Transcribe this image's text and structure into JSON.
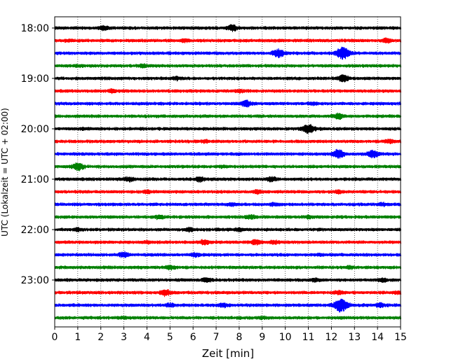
{
  "chart_data": {
    "type": "line",
    "title": "",
    "xlabel": "Zeit  [min]",
    "ylabel": "UTC (Lokalzeit = UTC + 02:00)",
    "xlim": [
      0,
      15
    ],
    "x_ticks": [
      0,
      1,
      2,
      3,
      4,
      5,
      6,
      7,
      8,
      9,
      10,
      11,
      12,
      13,
      14,
      15
    ],
    "x_tick_labels": [
      "0",
      "1",
      "2",
      "3",
      "4",
      "5",
      "6",
      "7",
      "8",
      "9",
      "10",
      "11",
      "12",
      "13",
      "14",
      "15"
    ],
    "x_grid": true,
    "trace_interval_minutes": 15,
    "y_tick_labels": [
      "18:00",
      "19:00",
      "20:00",
      "21:00",
      "22:00",
      "23:00"
    ],
    "trace_colors": [
      "#000000",
      "#ff0000",
      "#0000ff",
      "#008000"
    ],
    "series": [
      {
        "start": "18:00",
        "color": "#000000",
        "bursts": [
          [
            2.1,
            1.6
          ],
          [
            7.7,
            2.0
          ]
        ]
      },
      {
        "start": "18:15",
        "color": "#ff0000",
        "bursts": [
          [
            0.6,
            1.3
          ],
          [
            5.6,
            1.4
          ],
          [
            14.4,
            1.6
          ]
        ]
      },
      {
        "start": "18:30",
        "color": "#0000ff",
        "bursts": [
          [
            9.7,
            2.3
          ],
          [
            12.5,
            3.0
          ]
        ]
      },
      {
        "start": "18:45",
        "color": "#008000",
        "bursts": [
          [
            1.0,
            1.2
          ],
          [
            3.8,
            1.5
          ]
        ]
      },
      {
        "start": "19:00",
        "color": "#000000",
        "bursts": [
          [
            5.3,
            1.4
          ],
          [
            12.5,
            2.2
          ]
        ]
      },
      {
        "start": "19:15",
        "color": "#ff0000",
        "bursts": [
          [
            2.5,
            1.4
          ],
          [
            8.0,
            1.4
          ]
        ]
      },
      {
        "start": "19:30",
        "color": "#0000ff",
        "bursts": [
          [
            8.3,
            2.0
          ],
          [
            11.2,
            1.4
          ]
        ]
      },
      {
        "start": "19:45",
        "color": "#008000",
        "bursts": [
          [
            12.3,
            1.8
          ]
        ]
      },
      {
        "start": "20:00",
        "color": "#000000",
        "bursts": [
          [
            1.2,
            1.2
          ],
          [
            11.0,
            2.5
          ]
        ]
      },
      {
        "start": "20:15",
        "color": "#ff0000",
        "bursts": [
          [
            6.5,
            1.3
          ],
          [
            14.5,
            1.5
          ]
        ]
      },
      {
        "start": "20:30",
        "color": "#0000ff",
        "bursts": [
          [
            12.3,
            2.4
          ],
          [
            13.8,
            2.2
          ]
        ]
      },
      {
        "start": "20:45",
        "color": "#008000",
        "bursts": [
          [
            1.0,
            2.2
          ],
          [
            7.3,
            1.4
          ]
        ]
      },
      {
        "start": "21:00",
        "color": "#000000",
        "bursts": [
          [
            3.2,
            1.6
          ],
          [
            6.3,
            1.7
          ],
          [
            9.4,
            1.6
          ]
        ]
      },
      {
        "start": "21:15",
        "color": "#ff0000",
        "bursts": [
          [
            4.0,
            1.5
          ],
          [
            8.8,
            1.5
          ],
          [
            12.3,
            1.5
          ]
        ]
      },
      {
        "start": "21:30",
        "color": "#0000ff",
        "bursts": [
          [
            7.7,
            1.4
          ],
          [
            9.5,
            1.4
          ],
          [
            14.2,
            1.4
          ]
        ]
      },
      {
        "start": "21:45",
        "color": "#008000",
        "bursts": [
          [
            4.5,
            1.5
          ],
          [
            8.5,
            1.6
          ],
          [
            11.0,
            1.4
          ]
        ]
      },
      {
        "start": "22:00",
        "color": "#000000",
        "bursts": [
          [
            1.0,
            1.4
          ],
          [
            5.8,
            1.5
          ],
          [
            8.0,
            1.4
          ]
        ]
      },
      {
        "start": "22:15",
        "color": "#ff0000",
        "bursts": [
          [
            4.0,
            1.4
          ],
          [
            6.5,
            1.8
          ],
          [
            8.7,
            1.7
          ],
          [
            9.5,
            1.6
          ]
        ]
      },
      {
        "start": "22:30",
        "color": "#0000ff",
        "bursts": [
          [
            3.0,
            1.8
          ],
          [
            6.1,
            1.5
          ],
          [
            11.5,
            1.3
          ]
        ]
      },
      {
        "start": "22:45",
        "color": "#008000",
        "bursts": [
          [
            5.0,
            1.5
          ],
          [
            12.8,
            1.4
          ]
        ]
      },
      {
        "start": "23:00",
        "color": "#000000",
        "bursts": [
          [
            6.6,
            1.6
          ],
          [
            11.3,
            1.4
          ],
          [
            14.2,
            1.5
          ]
        ]
      },
      {
        "start": "23:15",
        "color": "#ff0000",
        "bursts": [
          [
            4.8,
            2.0
          ],
          [
            12.3,
            1.5
          ],
          [
            14.9,
            1.4
          ]
        ]
      },
      {
        "start": "23:30",
        "color": "#0000ff",
        "bursts": [
          [
            5.0,
            1.5
          ],
          [
            7.3,
            1.6
          ],
          [
            12.4,
            3.2
          ],
          [
            14.1,
            1.6
          ]
        ]
      },
      {
        "start": "23:45",
        "color": "#008000",
        "bursts": [
          [
            3.0,
            1.3
          ],
          [
            9.0,
            1.3
          ]
        ]
      }
    ]
  }
}
